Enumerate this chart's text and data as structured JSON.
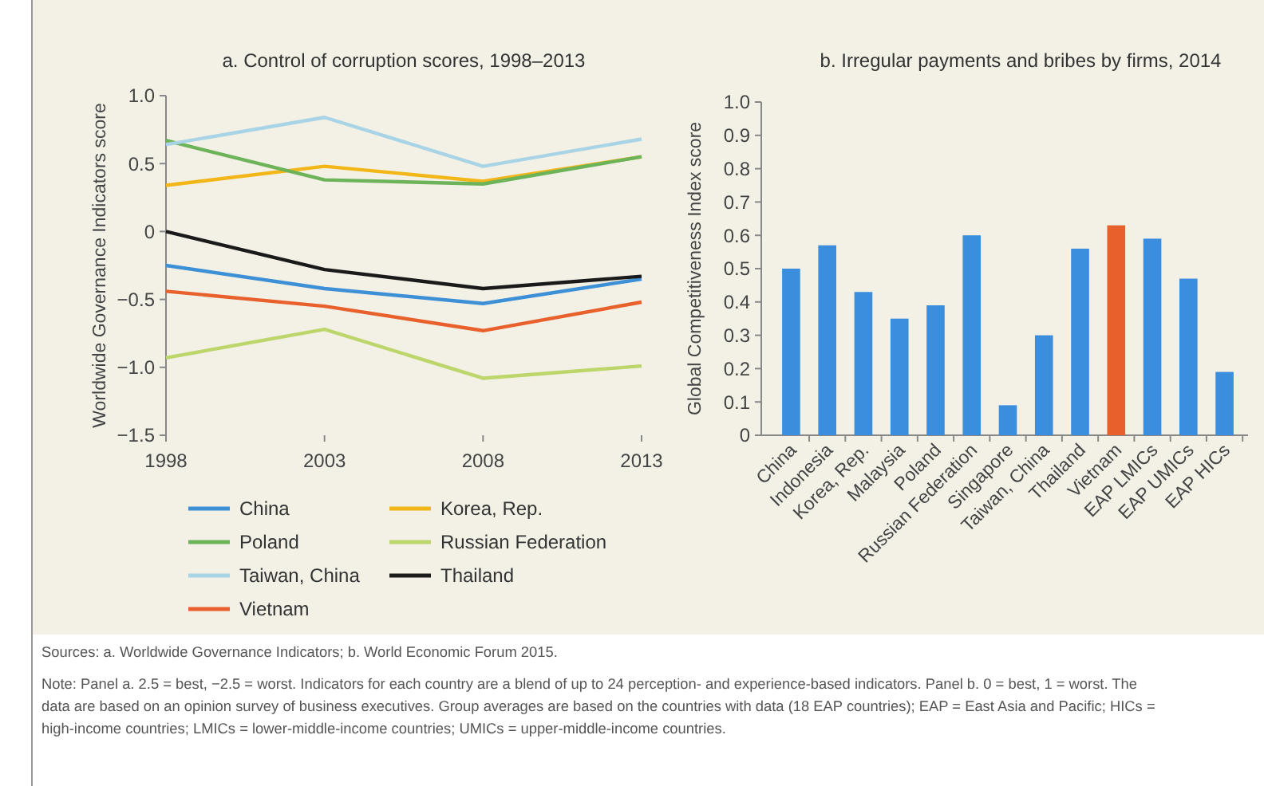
{
  "chart_data": [
    {
      "type": "line",
      "title": "a. Control of corruption scores, 1998–2013",
      "ylabel": "Worldwide Governance Indicators score",
      "x": [
        1998,
        2003,
        2008,
        2013
      ],
      "xlim": [
        1998,
        2013
      ],
      "xticks": [
        1998,
        2003,
        2008,
        2013
      ],
      "ylim": [
        -1.5,
        1.0
      ],
      "yticks": [
        {
          "value": -1.5,
          "label": "−1.5"
        },
        {
          "value": -1.0,
          "label": "−1.0"
        },
        {
          "value": -0.5,
          "label": "−0.5"
        },
        0,
        {
          "value": 0.5,
          "label": "0.5"
        },
        {
          "value": 1.0,
          "label": "1.0"
        }
      ],
      "legend": "bottom",
      "grid": false,
      "series": [
        {
          "name": "China",
          "color": "#3d8fd6",
          "values": [
            -0.25,
            -0.42,
            -0.53,
            -0.35
          ]
        },
        {
          "name": "Korea, Rep.",
          "color": "#f2b619",
          "values": [
            0.34,
            0.48,
            0.37,
            0.55
          ]
        },
        {
          "name": "Poland",
          "color": "#6db35a",
          "values": [
            0.67,
            0.38,
            0.35,
            0.55
          ]
        },
        {
          "name": "Russian Federation",
          "color": "#bcd66b",
          "values": [
            -0.93,
            -0.72,
            -1.08,
            -0.99
          ]
        },
        {
          "name": "Taiwan, China",
          "color": "#a8d4e6",
          "values": [
            0.64,
            0.84,
            0.48,
            0.68
          ]
        },
        {
          "name": "Thailand",
          "color": "#1a1a1a",
          "values": [
            0.0,
            -0.28,
            -0.42,
            -0.33
          ]
        },
        {
          "name": "Vietnam",
          "color": "#e8602c",
          "values": [
            -0.44,
            -0.55,
            -0.73,
            -0.52
          ]
        }
      ],
      "annotations": [
        "Sources: a. Worldwide Governance Indicators; b. World Economic Forum 2015.",
        "Note: Panel a. 2.5 = best, −2.5 = worst. Indicators for each country are a blend of up to 24 perception- and experience-based indicators. Panel b. 0 = best, 1 = worst. The data are based on an opinion survey of business executives. Group averages are based on the countries with data (18 EAP countries); EAP = East Asia and Pacific; HICs = high-income countries; LMICs = lower-middle-income countries; UMICs = upper-middle-income countries."
      ]
    },
    {
      "type": "bar",
      "title": "b. Irregular payments and bribes by firms, 2014",
      "ylabel": "Global Competitiveness Index score",
      "categories": [
        "China",
        "Indonesia",
        "Korea, Rep.",
        "Malaysia",
        "Poland",
        "Russian Federation",
        "Singapore",
        "Taiwan, China",
        "Thailand",
        "Vietnam",
        "EAP LMICs",
        "EAP UMICs",
        "EAP HICs"
      ],
      "values": [
        0.5,
        0.57,
        0.43,
        0.35,
        0.39,
        0.6,
        0.09,
        0.3,
        0.56,
        0.63,
        0.59,
        0.47,
        0.19
      ],
      "colors": [
        "#3b8ede",
        "#3b8ede",
        "#3b8ede",
        "#3b8ede",
        "#3b8ede",
        "#3b8ede",
        "#3b8ede",
        "#3b8ede",
        "#3b8ede",
        "#e8602c",
        "#3b8ede",
        "#3b8ede",
        "#3b8ede"
      ],
      "ylim": [
        0,
        1.0
      ],
      "yticks": [
        0,
        0.1,
        0.2,
        0.3,
        0.4,
        0.5,
        0.6,
        0.7,
        0.8,
        0.9,
        {
          "value": 1.0,
          "label": "1.0"
        }
      ],
      "grid": false
    }
  ]
}
